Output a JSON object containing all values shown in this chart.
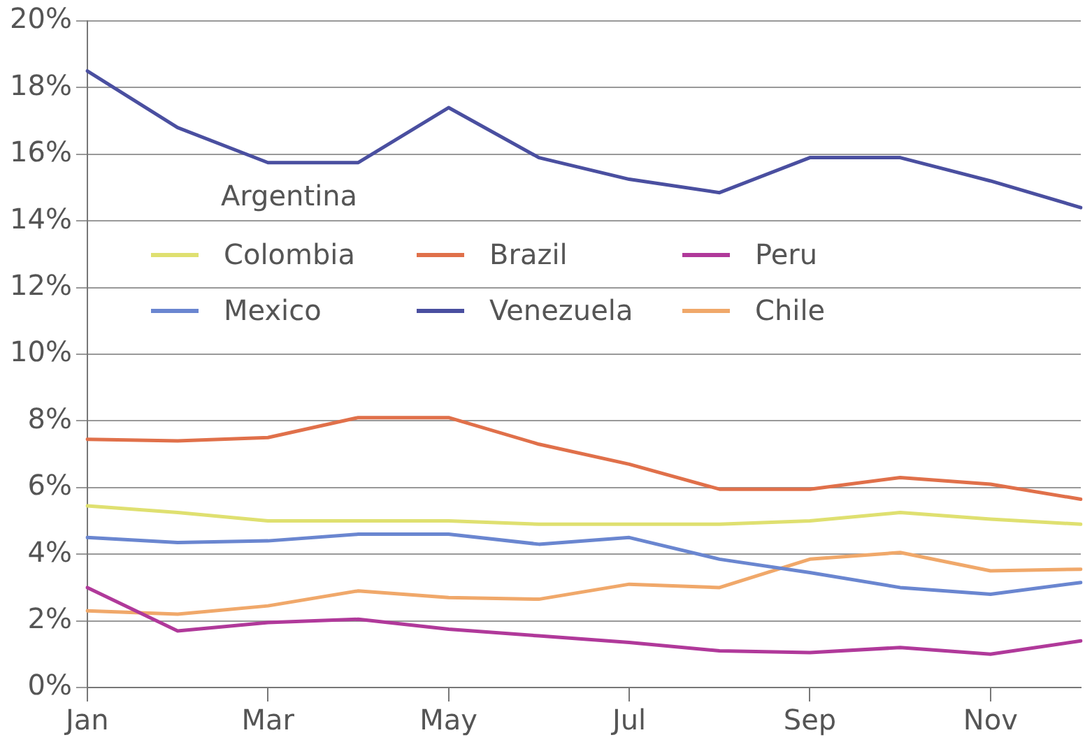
{
  "chart_data": {
    "type": "line",
    "categories": [
      "Jan",
      null,
      "Mar",
      null,
      "May",
      null,
      "Jul",
      null,
      "Sep",
      null,
      "Nov",
      null
    ],
    "series": [
      {
        "name": "Colombia",
        "color": "#dfe070",
        "values": [
          5.45,
          5.25,
          5.0,
          5.0,
          5.0,
          4.9,
          4.9,
          4.9,
          5.0,
          5.25,
          5.05,
          4.9
        ]
      },
      {
        "name": "Brazil",
        "color": "#e0704a",
        "values": [
          7.45,
          7.4,
          7.5,
          8.1,
          8.1,
          7.3,
          6.7,
          5.95,
          5.95,
          6.3,
          6.1,
          5.65
        ]
      },
      {
        "name": "Peru",
        "color": "#b0399a",
        "values": [
          3.0,
          1.7,
          1.95,
          2.05,
          1.75,
          1.55,
          1.35,
          1.1,
          1.05,
          1.2,
          1.0,
          1.4
        ]
      },
      {
        "name": "Mexico",
        "color": "#6a86d0",
        "values": [
          4.5,
          4.35,
          4.4,
          4.6,
          4.6,
          4.3,
          4.5,
          3.85,
          3.45,
          3.0,
          2.8,
          3.15
        ]
      },
      {
        "name": "Venezuela",
        "color": "#4a4fa0",
        "values": [
          18.5,
          16.8,
          15.75,
          15.75,
          17.4,
          15.9,
          15.25,
          14.85,
          15.9,
          15.9,
          15.2,
          14.4
        ]
      },
      {
        "name": "Chile",
        "color": "#f0a86a",
        "values": [
          2.3,
          2.2,
          2.45,
          2.9,
          2.7,
          2.65,
          3.1,
          3.0,
          3.85,
          4.05,
          3.5,
          3.55
        ]
      }
    ],
    "ylim": [
      0,
      20
    ],
    "yticks": [
      {
        "value": 0,
        "label": "0%"
      },
      {
        "value": 2,
        "label": "2%"
      },
      {
        "value": 4,
        "label": "4%"
      },
      {
        "value": 6,
        "label": "6%"
      },
      {
        "value": 8,
        "label": "8%"
      },
      {
        "value": 10,
        "label": "10%"
      },
      {
        "value": 12,
        "label": "12%"
      },
      {
        "value": 14,
        "label": "14%"
      },
      {
        "value": 16,
        "label": "16%"
      },
      {
        "value": 18,
        "label": "18%"
      },
      {
        "value": 20,
        "label": "20%"
      }
    ],
    "annotations": [
      "Argentina"
    ],
    "grid": "y",
    "legend": "left",
    "marker": "none",
    "line_style": "solid"
  }
}
